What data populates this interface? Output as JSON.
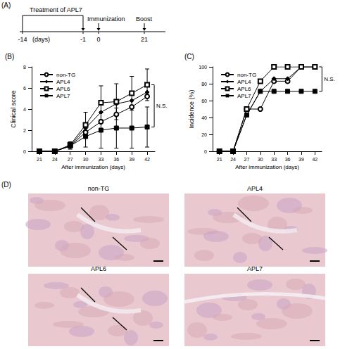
{
  "panel_a": {
    "label": "(A)",
    "treatment": "Treatment of APL7",
    "immunization": "Immunization",
    "boost": "Boost",
    "days": [
      -14,
      -1,
      0,
      21
    ],
    "unit": "(days)"
  },
  "chart_data": [
    {
      "type": "line",
      "title": "(B)",
      "x_label": "After immunization (days)",
      "y_label": "Clinical score",
      "categories": [
        21,
        24,
        27,
        30,
        33,
        36,
        39,
        42
      ],
      "ylim": [
        0,
        8
      ],
      "yticks": [
        0,
        2,
        4,
        6,
        8
      ],
      "grid": false,
      "legend": "upper left",
      "series": [
        {
          "name": "non-TG",
          "color": "#000000",
          "marker": "circle-open",
          "values": [
            0,
            0,
            0.5,
            1.8,
            2.8,
            3.5,
            4.2,
            5.2
          ]
        },
        {
          "name": "APL4",
          "color": "#000000",
          "marker": "diamond",
          "values": [
            0,
            0,
            0.5,
            2.2,
            3.7,
            4.5,
            4.8,
            5.6
          ]
        },
        {
          "name": "APL6",
          "color": "#000000",
          "marker": "square-open",
          "values": [
            0,
            0,
            0.6,
            2.5,
            4.6,
            4.7,
            5.5,
            6.3
          ],
          "errors": [
            0,
            0,
            0.3,
            1.2,
            1.6,
            1.7,
            1.6,
            1.5
          ]
        },
        {
          "name": "APL7",
          "color": "#000000",
          "marker": "square",
          "values": [
            0,
            0,
            0.5,
            1.4,
            2.0,
            2.2,
            2.2,
            2.3
          ],
          "errors": [
            0,
            0,
            0.3,
            1.0,
            1.7,
            1.9,
            1.9,
            1.9
          ]
        }
      ],
      "annotations": [
        {
          "text": "N.S.",
          "between": [
            "APL6",
            "APL7"
          ]
        }
      ]
    },
    {
      "type": "line",
      "title": "(C)",
      "x_label": "After immunization (days)",
      "y_label": "Incidence (%)",
      "categories": [
        21,
        24,
        27,
        30,
        33,
        36,
        39,
        42
      ],
      "ylim": [
        0,
        100
      ],
      "yticks": [
        0,
        20,
        40,
        60,
        80,
        100
      ],
      "grid": false,
      "legend": "upper left",
      "series": [
        {
          "name": "non-TG",
          "color": "#000000",
          "marker": "circle-open",
          "values": [
            0,
            0,
            50,
            50,
            83,
            83,
            100,
            100
          ]
        },
        {
          "name": "APL4",
          "color": "#000000",
          "marker": "diamond",
          "values": [
            0,
            0,
            43,
            71,
            86,
            86,
            100,
            100
          ]
        },
        {
          "name": "APL6",
          "color": "#000000",
          "marker": "square-open",
          "values": [
            0,
            0,
            50,
            83,
            100,
            100,
            100,
            100
          ]
        },
        {
          "name": "APL7",
          "color": "#000000",
          "marker": "square",
          "values": [
            0,
            0,
            43,
            71,
            71,
            71,
            71,
            71
          ]
        }
      ],
      "annotations": [
        {
          "text": "N.S.",
          "between": [
            "APL6",
            "APL7"
          ]
        }
      ]
    }
  ],
  "panel_d": {
    "label": "(D)",
    "images": [
      "non-TG",
      "APL4",
      "APL6",
      "APL7"
    ]
  }
}
